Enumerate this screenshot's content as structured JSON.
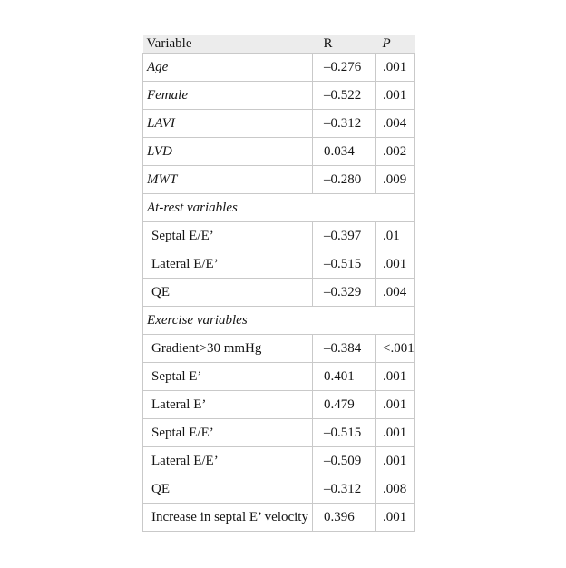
{
  "page": {
    "background_color": "#ffffff",
    "text_color": "#141414"
  },
  "table": {
    "header_bg_color": "#ececec",
    "border_color": "#c9c9c9",
    "columns": {
      "variable": "Variable",
      "r": "R",
      "p": "P"
    },
    "rows": [
      {
        "type": "top",
        "label": "Age",
        "r": "–0.276",
        "p": ".001"
      },
      {
        "type": "top",
        "label": "Female",
        "r": "–0.522",
        "p": ".001"
      },
      {
        "type": "top",
        "label": "LAVI",
        "r": "–0.312",
        "p": ".004"
      },
      {
        "type": "top",
        "label": "LVD",
        "r": "0.034",
        "p": ".002"
      },
      {
        "type": "top",
        "label": "MWT",
        "r": "–0.280",
        "p": ".009"
      },
      {
        "type": "section",
        "label": "At-rest variables"
      },
      {
        "type": "sub",
        "label": "Septal E/E’",
        "r": "–0.397",
        "p": ".01"
      },
      {
        "type": "sub",
        "label": "Lateral E/E’",
        "r": "–0.515",
        "p": ".001"
      },
      {
        "type": "sub",
        "label": "QE",
        "r": "–0.329",
        "p": ".004"
      },
      {
        "type": "section",
        "label": "Exercise variables"
      },
      {
        "type": "sub",
        "label": "Gradient>30 mmHg",
        "r": "–0.384",
        "p": "<.001"
      },
      {
        "type": "sub",
        "label": "Septal E’",
        "r": "0.401",
        "p": ".001"
      },
      {
        "type": "sub",
        "label": "Lateral E’",
        "r": "0.479",
        "p": ".001"
      },
      {
        "type": "sub",
        "label": "Septal E/E’",
        "r": "–0.515",
        "p": ".001"
      },
      {
        "type": "sub",
        "label": "Lateral E/E’",
        "r": "–0.509",
        "p": ".001"
      },
      {
        "type": "sub",
        "label": "QE",
        "r": "–0.312",
        "p": ".008"
      },
      {
        "type": "sub",
        "label": "Increase in septal E’ velocity",
        "r": "0.396",
        "p": ".001"
      }
    ]
  }
}
